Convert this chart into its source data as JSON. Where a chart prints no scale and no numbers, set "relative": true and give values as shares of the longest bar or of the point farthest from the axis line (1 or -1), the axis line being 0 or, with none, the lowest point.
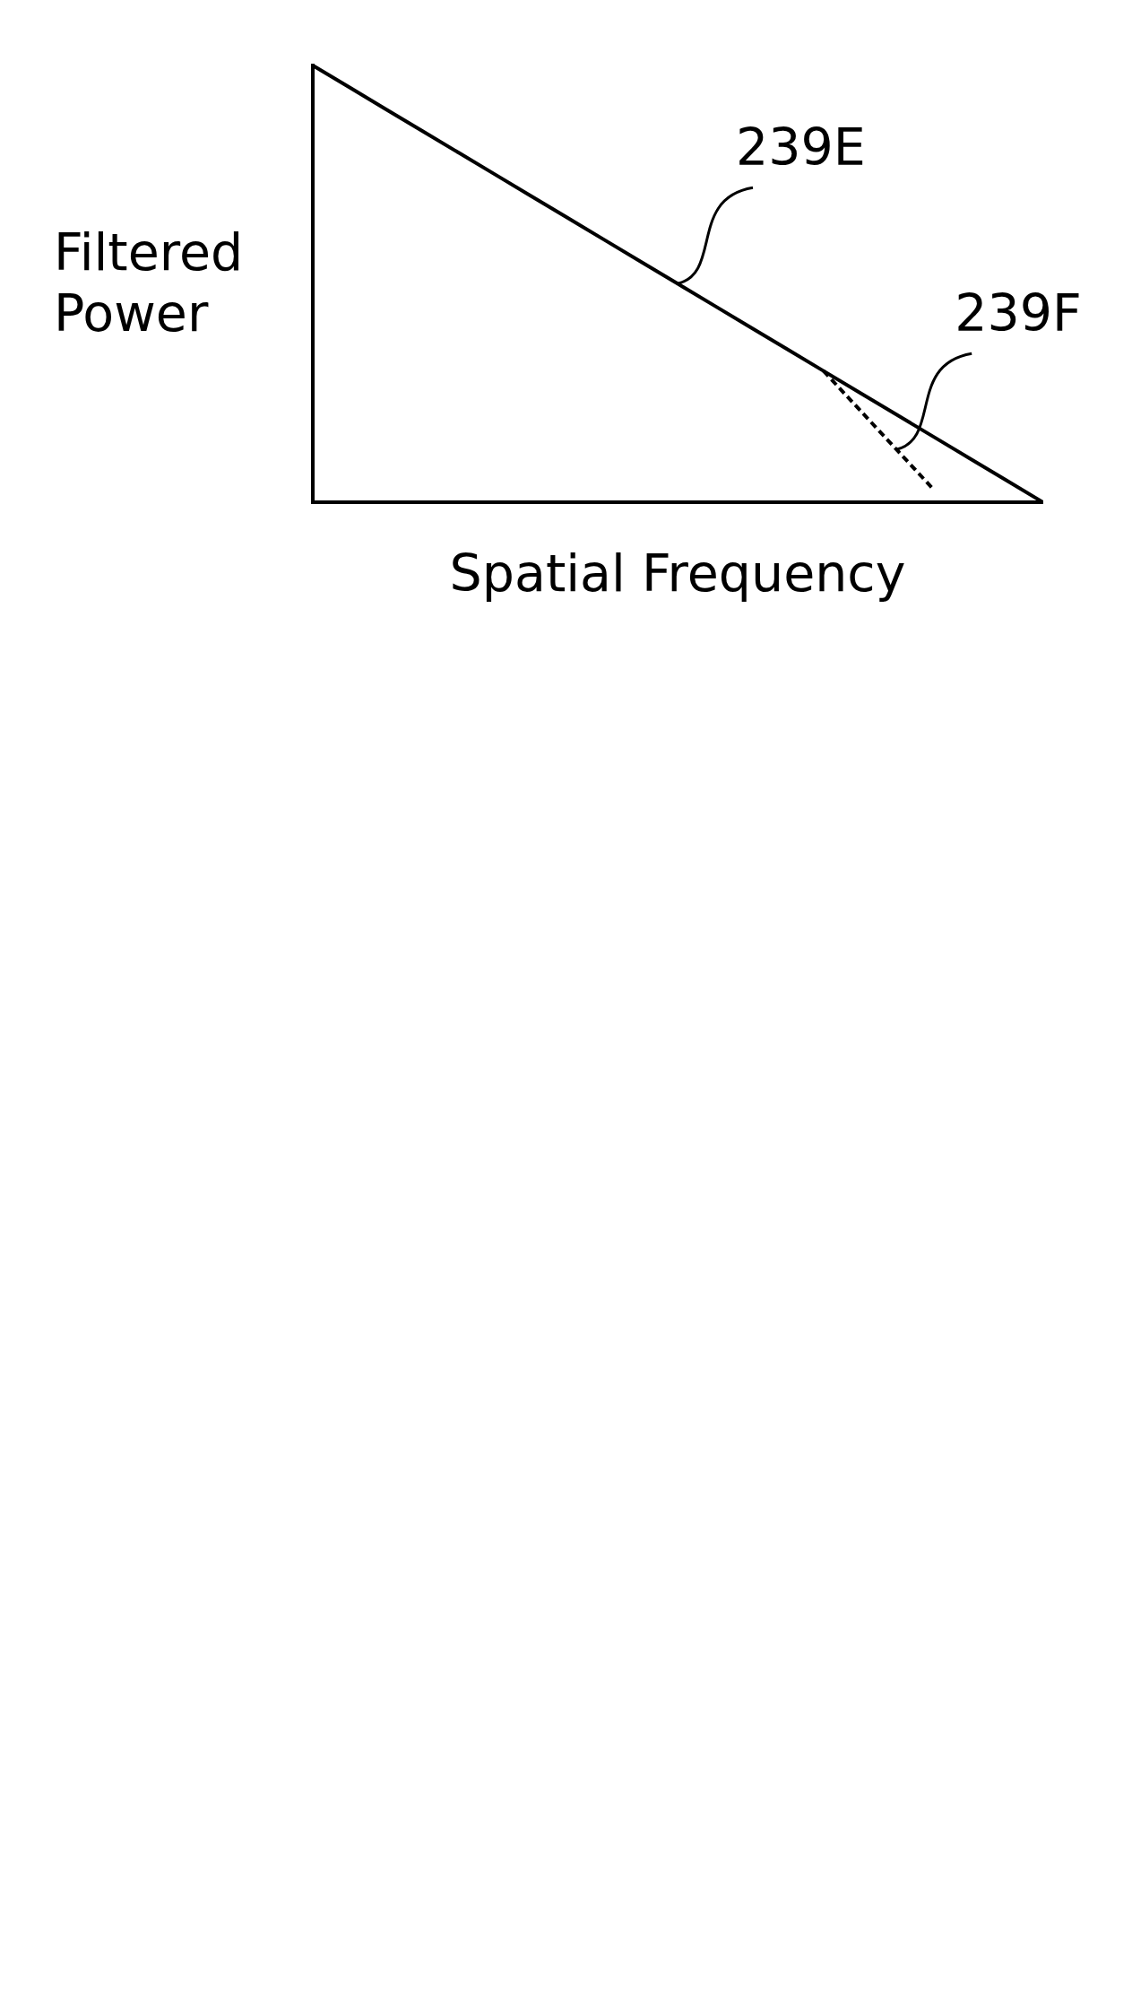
{
  "chart_data": {
    "type": "line",
    "relative": true,
    "xlabel": "Spatial Frequency",
    "ylabel": "Filtered Power",
    "categories": [
      null,
      null,
      null,
      null,
      null,
      null,
      null,
      null,
      null,
      null,
      null,
      null,
      null,
      null,
      null,
      null,
      null,
      null,
      null,
      null,
      null
    ],
    "series": [
      {
        "name": "239E",
        "color": "#000000",
        "line_style": "solid",
        "values": [
          1,
          0.95,
          0.9,
          0.85,
          0.8,
          0.75,
          0.7,
          0.65,
          0.6,
          0.55,
          0.5,
          0.45,
          0.4,
          0.35,
          0.3,
          0.25,
          0.2,
          0.15,
          0.1,
          0.05,
          0
        ]
      },
      {
        "name": "239F",
        "color": "#000000",
        "line_style": "dashed",
        "values": [
          null,
          null,
          null,
          null,
          null,
          null,
          null,
          null,
          null,
          null,
          null,
          null,
          null,
          null,
          0.3,
          0.21,
          0.12,
          0.03,
          null,
          null,
          null
        ]
      }
    ],
    "marker": "none"
  }
}
